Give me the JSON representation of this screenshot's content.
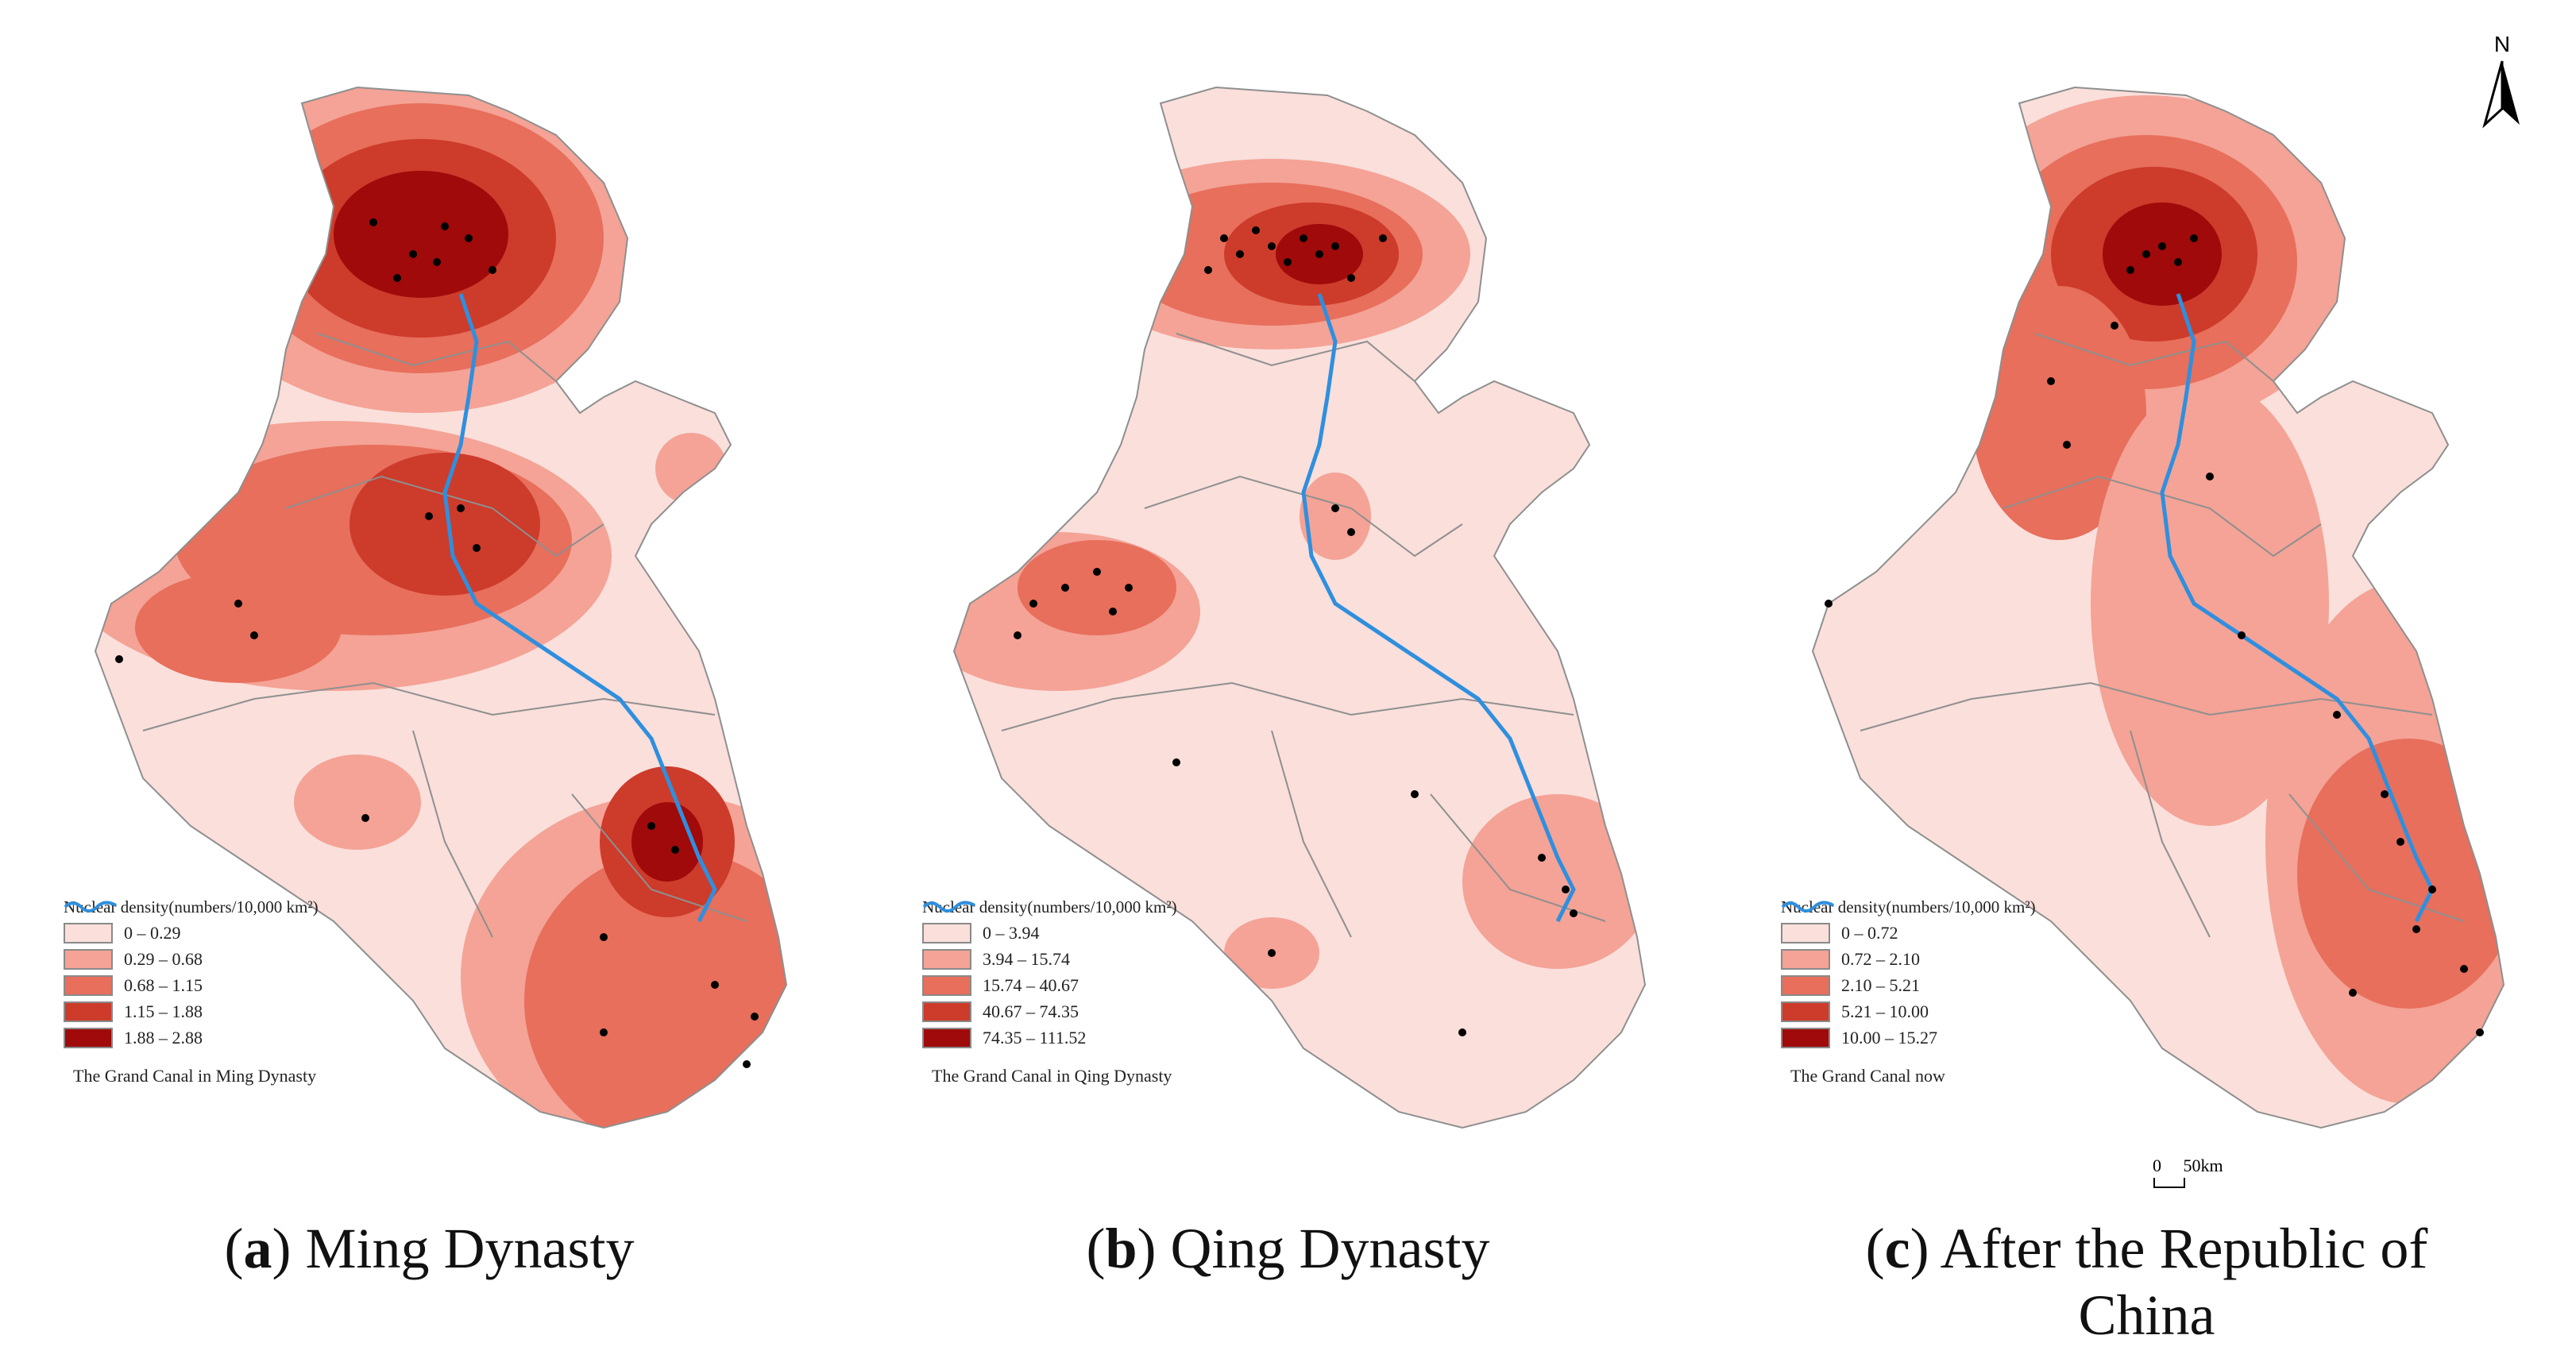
{
  "colors": {
    "class1": "#fadfdb",
    "class2": "#f4a396",
    "class3": "#e76f5c",
    "class4": "#cd3b2b",
    "class5": "#a00a0a",
    "canal": "#2f8fde",
    "boundary": "#8f8f8f",
    "point": "#000000"
  },
  "north_arrow": {
    "label": "N",
    "icon": "north-arrow-icon"
  },
  "scale_bar": {
    "zero": "0",
    "distance": "50km"
  },
  "panels": [
    {
      "legend": {
        "title": "Nuclear density(numbers/10,000 km²)",
        "classes": [
          "0 – 0.29",
          "0.29 – 0.68",
          "0.68 – 1.15",
          "1.15 – 1.88",
          "1.88 – 2.88"
        ],
        "canal_label": "The Grand Canal in Ming Dynasty"
      },
      "caption": {
        "letter": "a",
        "text": "Ming Dynasty"
      }
    },
    {
      "legend": {
        "title": "Nuclear density(numbers/10,000 km²)",
        "classes": [
          "0 – 3.94",
          "3.94 – 15.74",
          "15.74 – 40.67",
          "40.67 – 74.35",
          "74.35 – 111.52"
        ],
        "canal_label": "The Grand Canal in Qing Dynasty"
      },
      "caption": {
        "letter": "b",
        "text": "Qing Dynasty"
      }
    },
    {
      "legend": {
        "title": "Nuclear density(numbers/10,000 km²)",
        "classes": [
          "0 – 0.72",
          "0.72 – 2.10",
          "2.10 – 5.21",
          "5.21 – 10.00",
          "10.00 – 15.27"
        ],
        "canal_label": "The Grand Canal now"
      },
      "caption": {
        "letter": "c",
        "text": "After the Republic of",
        "text2": "China"
      }
    }
  ]
}
